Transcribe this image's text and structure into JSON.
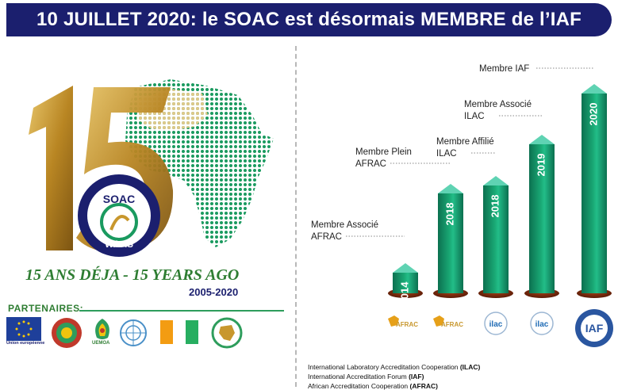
{
  "banner": {
    "title": "10 JUILLET 2020: le SOAC est désormais MEMBRE de l’IAF"
  },
  "emblem": {
    "number": "15",
    "seal_top": "SOAC",
    "seal_bottom": "WAAS",
    "seal_ring_top": "SYSTÈME OUEST AFRICAIN D'ACCRÉDITATION",
    "seal_ring_bottom": "WEST AFRICAN ACCREDITATION SYSTEM",
    "tagline": "15 ANS DÉJA - 15 YEARS AGO",
    "years": "2005-2020"
  },
  "partners": {
    "heading": "PARTENAIRES:",
    "items": [
      {
        "name": "eu-flag",
        "caption": "Union européenne"
      },
      {
        "name": "ecowas-seal",
        "caption": ""
      },
      {
        "name": "uemoa-logo",
        "caption": "UEMOA"
      },
      {
        "name": "un-emblem",
        "caption": ""
      },
      {
        "name": "ivory-coast-flag",
        "caption": ""
      },
      {
        "name": "ecowas-logo",
        "caption": ""
      }
    ]
  },
  "milestones": [
    {
      "label_line1": "Membre Associé",
      "label_line2": "AFRAC",
      "year": "2014",
      "logo": "AFRAC"
    },
    {
      "label_line1": "Membre Plein",
      "label_line2": "AFRAC",
      "year": "2018",
      "logo": "AFRAC"
    },
    {
      "label_line1": "Membre Affilié",
      "label_line2": "ILAC",
      "year": "2018",
      "logo": "ilac"
    },
    {
      "label_line1": "Membre Associé",
      "label_line2": "ILAC",
      "year": "2019",
      "logo": "ilac"
    },
    {
      "label_line1": "Membre IAF",
      "label_line2": "",
      "year": "2020",
      "logo": "IAF"
    }
  ],
  "iaf_ring_text": "INTERNATIONAL ACCREDITATION FORUM",
  "footer": {
    "line1_text": "International Laboratory Accreditation Cooperation ",
    "line1_abbr": "(ILAC)",
    "line2_text": "International Accreditation Forum ",
    "line2_abbr": "(IAF)",
    "line3_text": "African Accreditation Cooperation ",
    "line3_abbr": "(AFRAC)"
  },
  "colors": {
    "banner": "#1b1f6e",
    "green": "#17a874",
    "gold": "#c8972d",
    "navy": "#1b1f6e",
    "tagline_green": "#2e7d32"
  }
}
